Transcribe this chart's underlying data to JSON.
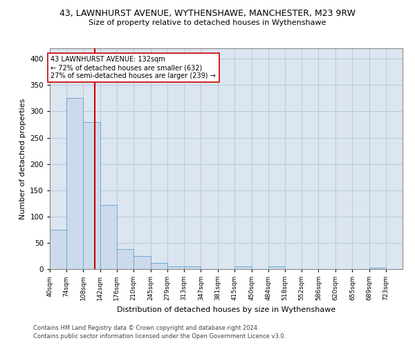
{
  "title": "43, LAWNHURST AVENUE, WYTHENSHAWE, MANCHESTER, M23 9RW",
  "subtitle": "Size of property relative to detached houses in Wythenshawe",
  "xlabel": "Distribution of detached houses by size in Wythenshawe",
  "ylabel": "Number of detached properties",
  "footer1": "Contains HM Land Registry data © Crown copyright and database right 2024.",
  "footer2": "Contains public sector information licensed under the Open Government Licence v3.0.",
  "bin_edges": [
    40,
    74,
    108,
    142,
    176,
    210,
    245,
    279,
    313,
    347,
    381,
    415,
    450,
    484,
    518,
    552,
    586,
    620,
    655,
    689,
    723
  ],
  "bar_heights": [
    75,
    325,
    280,
    122,
    38,
    25,
    12,
    5,
    5,
    0,
    0,
    5,
    0,
    5,
    0,
    0,
    0,
    0,
    0,
    3
  ],
  "bar_color": "#ccdaeb",
  "bar_edge_color": "#6aaad4",
  "grid_color": "#b8c8d8",
  "bg_color": "#dce6f0",
  "property_size": 132,
  "vline_color": "#cc0000",
  "annotation_text": "43 LAWNHURST AVENUE: 132sqm\n← 72% of detached houses are smaller (632)\n27% of semi-detached houses are larger (239) →",
  "annotation_box_color": "#ffffff",
  "annotation_border_color": "#cc0000",
  "ylim": [
    0,
    420
  ],
  "yticks": [
    0,
    50,
    100,
    150,
    200,
    250,
    300,
    350,
    400
  ]
}
